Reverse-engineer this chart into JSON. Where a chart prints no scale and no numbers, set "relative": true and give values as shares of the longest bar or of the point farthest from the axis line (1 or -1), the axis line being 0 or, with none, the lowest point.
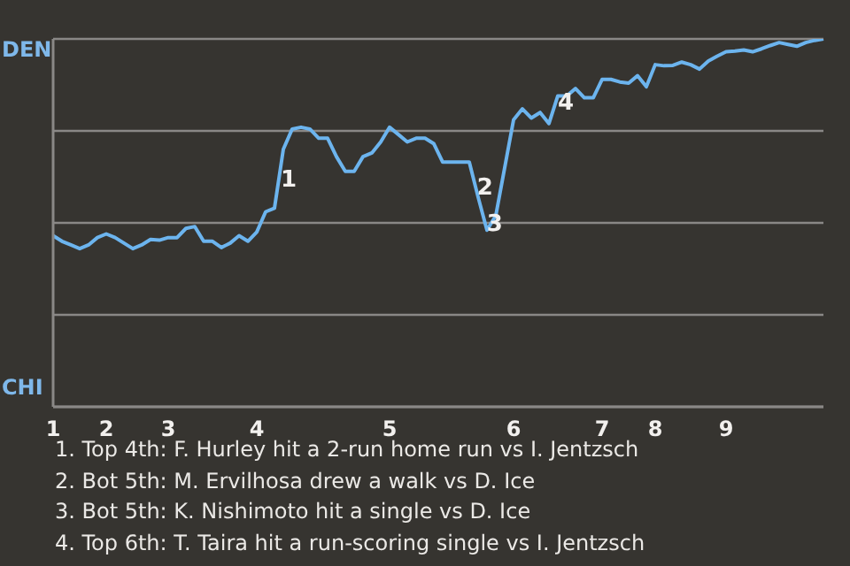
{
  "chart_data": {
    "type": "line",
    "marker": "none",
    "grid": "y",
    "relative": true,
    "categories": [
      "1",
      null,
      null,
      null,
      null,
      null,
      "2",
      null,
      null,
      null,
      null,
      null,
      null,
      "3",
      null,
      null,
      null,
      null,
      null,
      null,
      null,
      null,
      null,
      "4",
      null,
      null,
      null,
      null,
      null,
      null,
      null,
      null,
      null,
      null,
      null,
      null,
      null,
      null,
      "5",
      null,
      null,
      null,
      null,
      null,
      null,
      null,
      null,
      null,
      null,
      null,
      null,
      null,
      "6",
      null,
      null,
      null,
      null,
      null,
      null,
      null,
      null,
      null,
      "7",
      null,
      null,
      null,
      null,
      null,
      "8",
      null,
      null,
      null,
      null,
      null,
      null,
      null,
      "9",
      null,
      null,
      null,
      null,
      null,
      null,
      null,
      null,
      null,
      null,
      null
    ],
    "series": [
      {
        "color": "#6cb4ee",
        "values": [
          0.465,
          0.45,
          0.44,
          0.43,
          0.44,
          0.46,
          0.47,
          0.46,
          0.445,
          0.43,
          0.44,
          0.455,
          0.453,
          0.46,
          0.46,
          0.485,
          0.49,
          0.45,
          0.45,
          0.433,
          0.445,
          0.465,
          0.45,
          0.475,
          0.53,
          0.54,
          0.7,
          0.755,
          0.76,
          0.755,
          0.73,
          0.73,
          0.68,
          0.64,
          0.64,
          0.68,
          0.69,
          0.72,
          0.76,
          0.74,
          0.72,
          0.73,
          0.73,
          0.715,
          0.665,
          0.665,
          0.665,
          0.665,
          0.57,
          0.48,
          0.52,
          0.65,
          0.78,
          0.81,
          0.785,
          0.8,
          0.77,
          0.845,
          0.845,
          0.865,
          0.84,
          0.84,
          0.89,
          0.89,
          0.883,
          0.88,
          0.9,
          0.87,
          0.93,
          0.927,
          0.928,
          0.937,
          0.93,
          0.918,
          0.94,
          0.953,
          0.965,
          0.967,
          0.97,
          0.965,
          0.973,
          0.982,
          0.99,
          0.985,
          0.98,
          0.99,
          0.996,
          1.0
        ]
      }
    ],
    "annotations": [
      "DEN",
      "CHI",
      {
        "text": "1",
        "y": 0.62
      },
      {
        "text": "2",
        "y": 0.6
      },
      {
        "text": "3",
        "y": 0.5
      },
      {
        "text": "4",
        "y": 0.83
      },
      "1. Top 4th: F. Hurley hit a 2-run home run vs I. Jentzsch",
      "2. Bot 5th: M. Ervilhosa drew a walk vs D. Ice",
      "3. Bot 5th: K. Nishimoto hit a single vs D. Ice",
      "4. Top 6th: T. Taira hit a run-scoring single vs I. Jentzsch"
    ]
  }
}
